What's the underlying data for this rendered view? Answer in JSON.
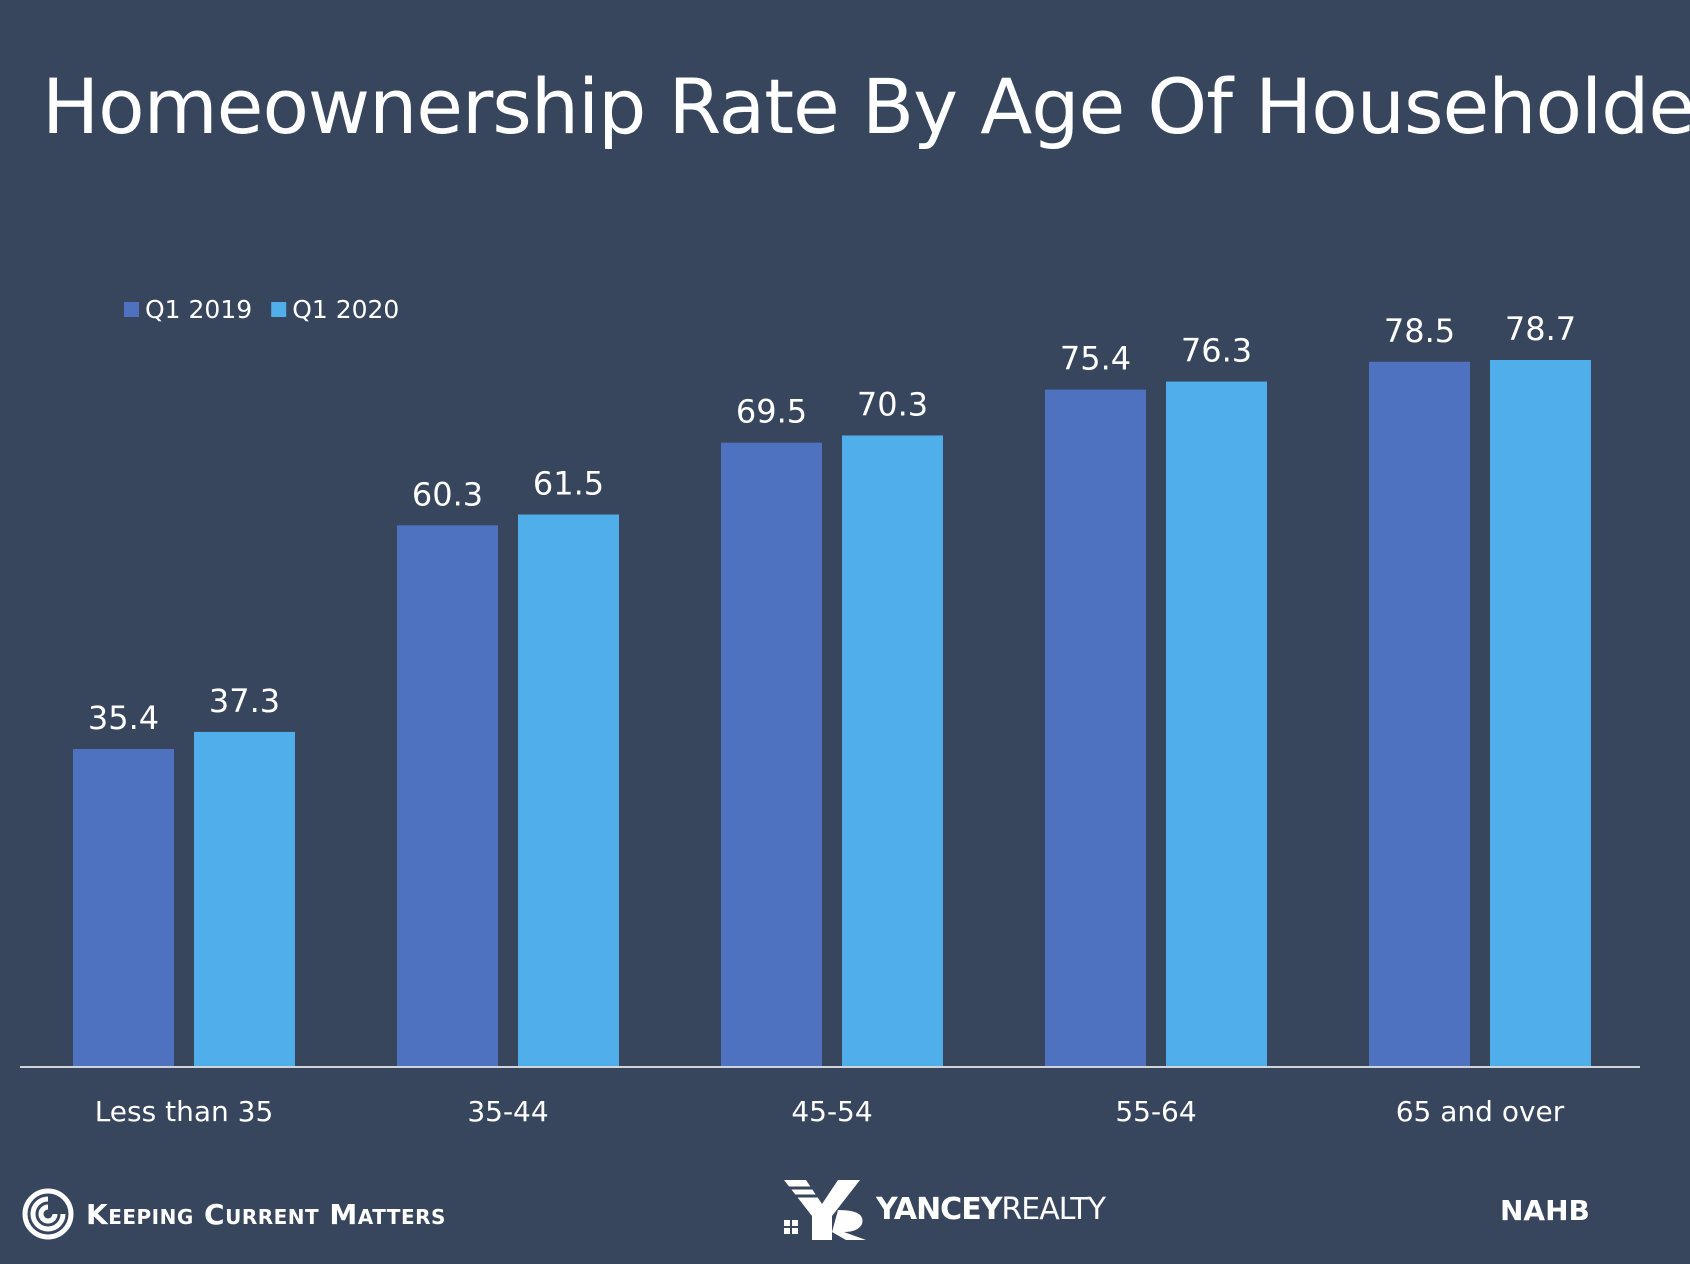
{
  "header": {
    "title": "Homeownership Rate By Age Of Householder"
  },
  "colors": {
    "background": "#37465d",
    "series_2019": "#4e72c0",
    "series_2020": "#50aeea",
    "axis": "#d0d4da"
  },
  "chart_data": {
    "type": "bar",
    "title": "Homeownership Rate By Age Of Householder",
    "xlabel": "",
    "ylabel": "",
    "categories": [
      "Less than 35",
      "35-44",
      "45-54",
      "55-64",
      "65 and over"
    ],
    "series": [
      {
        "name": "Q1 2019",
        "color": "#4e72c0",
        "values": [
          35.4,
          60.3,
          69.5,
          75.4,
          78.5
        ]
      },
      {
        "name": "Q1 2020",
        "color": "#50aeea",
        "values": [
          37.3,
          61.5,
          70.3,
          76.3,
          78.7
        ]
      }
    ],
    "ylim": [
      0,
      78.7
    ],
    "grid": false,
    "legend": "top-left",
    "data_labels": true
  },
  "footer": {
    "left_logo_text": "Keeping Current Matters",
    "center_logo_bold": "YANCEY",
    "center_logo_light": "REALTY",
    "source": "NAHB"
  }
}
